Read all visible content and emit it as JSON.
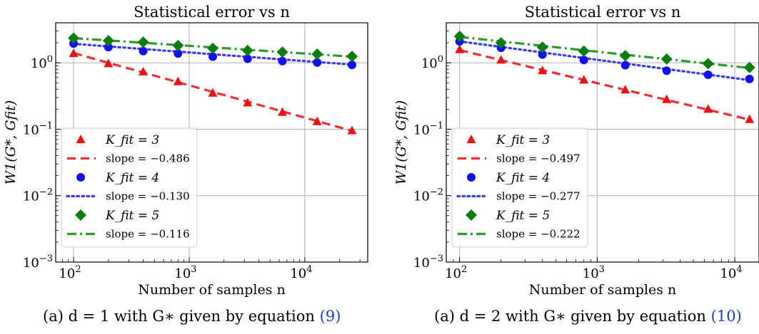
{
  "chart_data": [
    {
      "type": "scatter",
      "title": "Statistical error vs n",
      "xlabel": "Number of samples n",
      "ylabel": "W1(G*, Gfit)",
      "xscale": "log",
      "yscale": "log",
      "xlim": [
        70,
        35000
      ],
      "ylim": [
        0.001,
        4
      ],
      "xticks": [
        {
          "value": 100,
          "base": "10",
          "exp": "2"
        },
        {
          "value": 1000,
          "base": "10",
          "exp": "3"
        },
        {
          "value": 10000,
          "base": "10",
          "exp": "4"
        }
      ],
      "yticks": [
        {
          "value": 0.001,
          "base": "10",
          "exp": "−3"
        },
        {
          "value": 0.01,
          "base": "10",
          "exp": "−2"
        },
        {
          "value": 0.1,
          "base": "10",
          "exp": "−1"
        },
        {
          "value": 1,
          "base": "10",
          "exp": "0"
        }
      ],
      "grid": true,
      "legend_position": "lower-left",
      "x": [
        100,
        200,
        400,
        800,
        1600,
        3200,
        6400,
        12800,
        25600
      ],
      "series": [
        {
          "name": "K_fit = 3",
          "marker": "triangle",
          "color": "#ee1111",
          "values": [
            1.38,
            0.97,
            0.73,
            0.52,
            0.35,
            0.25,
            0.18,
            0.13,
            0.095
          ],
          "fit_label": "slope = −0.486",
          "fit_style": "dashed",
          "fit_color": "#f03030",
          "fit_start": 1.4,
          "slope": -0.486
        },
        {
          "name": "K_fit = 4",
          "marker": "circle",
          "color": "#1111ee",
          "values": [
            1.95,
            1.72,
            1.5,
            1.38,
            1.24,
            1.15,
            1.06,
            1.01,
            0.93
          ],
          "fit_label": "slope = −0.130",
          "fit_style": "dotted",
          "fit_color": "#3a3aee",
          "fit_start": 1.93,
          "slope": -0.13
        },
        {
          "name": "K_fit = 5",
          "marker": "diamond",
          "color": "#0a7d0a",
          "values": [
            2.35,
            2.15,
            2.05,
            1.82,
            1.65,
            1.53,
            1.45,
            1.35,
            1.25
          ],
          "fit_label": "slope = −0.116",
          "fit_style": "dashdot",
          "fit_color": "#2e9a2e",
          "fit_start": 2.35,
          "slope": -0.116
        }
      ]
    },
    {
      "type": "scatter",
      "title": "Statistical error vs n",
      "xlabel": "Number of samples n",
      "ylabel": "W1(G*, Gfit)",
      "xscale": "log",
      "yscale": "log",
      "xlim": [
        80,
        15000
      ],
      "ylim": [
        0.001,
        4
      ],
      "xticks": [
        {
          "value": 100,
          "base": "10",
          "exp": "2"
        },
        {
          "value": 1000,
          "base": "10",
          "exp": "3"
        },
        {
          "value": 10000,
          "base": "10",
          "exp": "4"
        }
      ],
      "yticks": [
        {
          "value": 0.001,
          "base": "10",
          "exp": "−3"
        },
        {
          "value": 0.01,
          "base": "10",
          "exp": "−2"
        },
        {
          "value": 0.1,
          "base": "10",
          "exp": "−1"
        },
        {
          "value": 1,
          "base": "10",
          "exp": "0"
        }
      ],
      "grid": true,
      "legend_position": "lower-left",
      "x": [
        100,
        200,
        400,
        800,
        1600,
        3200,
        6400,
        12800
      ],
      "series": [
        {
          "name": "K_fit = 3",
          "marker": "triangle",
          "color": "#ee1111",
          "values": [
            1.58,
            1.1,
            0.76,
            0.55,
            0.39,
            0.28,
            0.2,
            0.14
          ],
          "fit_label": "slope = −0.497",
          "fit_style": "dashed",
          "fit_color": "#f03030",
          "fit_start": 1.55,
          "slope": -0.497
        },
        {
          "name": "K_fit = 4",
          "marker": "circle",
          "color": "#1111ee",
          "values": [
            2.1,
            1.68,
            1.33,
            1.1,
            0.92,
            0.76,
            0.66,
            0.57
          ],
          "fit_label": "slope = −0.277",
          "fit_style": "dotted",
          "fit_color": "#3a3aee",
          "fit_start": 2.1,
          "slope": -0.277
        },
        {
          "name": "K_fit = 5",
          "marker": "diamond",
          "color": "#0a7d0a",
          "values": [
            2.5,
            2.0,
            1.72,
            1.5,
            1.28,
            1.14,
            0.97,
            0.85
          ],
          "fit_label": "slope = −0.222",
          "fit_style": "dashdot",
          "fit_color": "#2e9a2e",
          "fit_start": 2.45,
          "slope": -0.222
        }
      ]
    }
  ],
  "captions": [
    {
      "label": "(a)",
      "text": "d = 1 with G∗ given by equation",
      "ref": "(9)"
    },
    {
      "label": "(a)",
      "text": "d = 2 with G∗ given by equation",
      "ref": "(10)"
    }
  ]
}
